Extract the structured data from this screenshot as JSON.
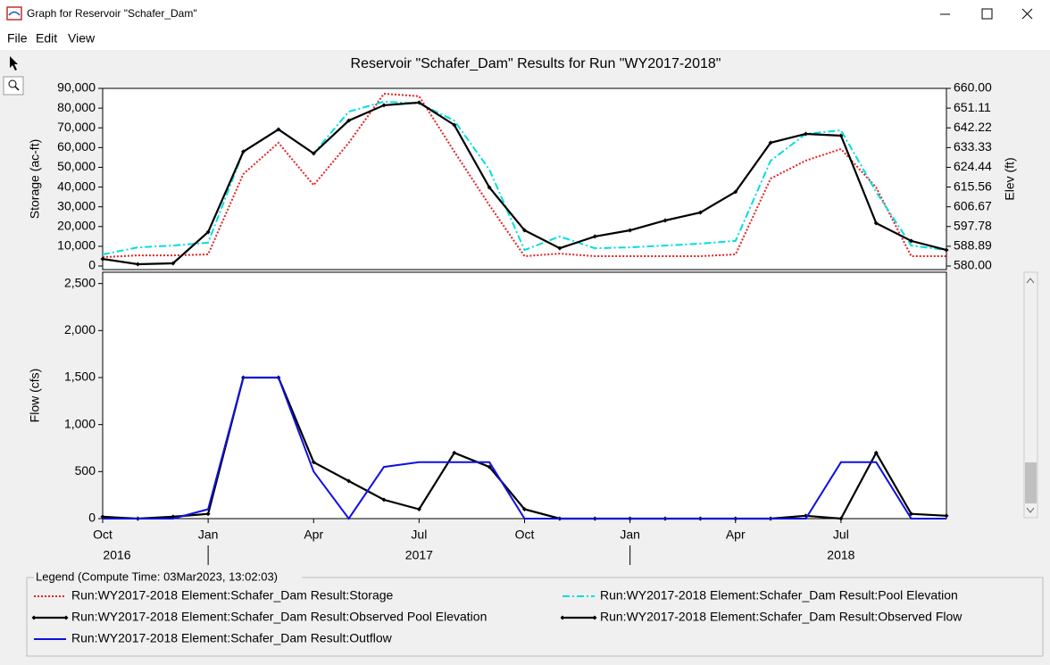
{
  "window": {
    "title": "Graph for Reservoir \"Schafer_Dam\"",
    "menu": [
      "File",
      "Edit",
      "View"
    ]
  },
  "chart_data": [
    {
      "type": "line",
      "title": "Reservoir \"Schafer_Dam\" Results for Run \"WY2017-2018\"",
      "ylabel": "Storage (ac-ft)",
      "y2label": "Elev (ft)",
      "x": [
        "2016-10",
        "2016-11",
        "2016-12",
        "2017-01",
        "2017-02",
        "2017-03",
        "2017-04",
        "2017-05",
        "2017-06",
        "2017-07",
        "2017-08",
        "2017-09",
        "2017-10",
        "2017-11",
        "2017-12",
        "2018-01",
        "2018-02",
        "2018-03",
        "2018-04",
        "2018-05",
        "2018-06",
        "2018-07",
        "2018-08",
        "2018-09",
        "2018-10"
      ],
      "xlim": [
        "2016-10",
        "2018-10"
      ],
      "ylim": [
        -1800,
        90000
      ],
      "yticks": [
        0,
        {
          "value": 10000,
          "label": "10,000"
        },
        {
          "value": 20000,
          "label": "20,000"
        },
        {
          "value": 30000,
          "label": "30,000"
        },
        {
          "value": 40000,
          "label": "40,000"
        },
        {
          "value": 50000,
          "label": "50,000"
        },
        {
          "value": 60000,
          "label": "60,000"
        },
        {
          "value": 70000,
          "label": "70,000"
        },
        {
          "value": 80000,
          "label": "80,000"
        },
        {
          "value": 90000,
          "label": "90,000"
        }
      ],
      "y2lim": [
        578.4,
        660
      ],
      "y2ticks": [
        {
          "value": 580,
          "label": "580.00"
        },
        588.89,
        597.78,
        606.67,
        615.56,
        624.44,
        633.33,
        642.22,
        651.11,
        {
          "value": 660,
          "label": "660.00"
        }
      ],
      "series": [
        {
          "name": "Run:WY2017-2018 Element:Schafer_Dam Result:Storage",
          "color": "#e32222",
          "style": "dotted",
          "axis": "y",
          "values": [
            4500,
            5400,
            5400,
            5900,
            46600,
            62400,
            41000,
            62400,
            87300,
            86000,
            58000,
            30800,
            5000,
            6300,
            5000,
            5000,
            5000,
            5000,
            5900,
            44300,
            53400,
            59300,
            39800,
            5000,
            5000
          ]
        },
        {
          "name": "Run:WY2017-2018 Element:Schafer_Dam Result:Pool Elevation",
          "color": "#00dede",
          "style": "dashdot",
          "axis": "y2",
          "values": [
            585.2,
            588.4,
            589.2,
            590.5,
            631.5,
            641.5,
            630.7,
            649.5,
            654.0,
            653.2,
            645.5,
            623.4,
            587.2,
            593.3,
            588.0,
            588.4,
            589.2,
            590.1,
            591.3,
            627.4,
            639.5,
            641.1,
            613.4,
            589.2,
            587.2
          ]
        },
        {
          "name": "Run:WY2017-2018 Element:Schafer_Dam Result:Observed Pool Elevation",
          "color": "#000000",
          "style": "markers",
          "axis": "y2",
          "values": [
            583.2,
            580.8,
            581.2,
            595.3,
            631.5,
            641.5,
            630.7,
            645.5,
            652.4,
            653.6,
            643.5,
            615.4,
            596.1,
            588.0,
            593.3,
            596.1,
            600.5,
            604.1,
            613.4,
            635.5,
            639.5,
            638.7,
            599.3,
            591.3,
            587.2
          ]
        }
      ]
    },
    {
      "type": "line",
      "ylabel": "Flow (cfs)",
      "x": [
        "2016-10",
        "2016-11",
        "2016-12",
        "2017-01",
        "2017-02",
        "2017-03",
        "2017-04",
        "2017-05",
        "2017-06",
        "2017-07",
        "2017-08",
        "2017-09",
        "2017-10",
        "2017-11",
        "2017-12",
        "2018-01",
        "2018-02",
        "2018-03",
        "2018-04",
        "2018-05",
        "2018-06",
        "2018-07",
        "2018-08",
        "2018-09",
        "2018-10"
      ],
      "xlim": [
        "2016-10",
        "2018-10"
      ],
      "ylim": [
        0,
        2620
      ],
      "yticks": [
        0,
        500,
        {
          "value": 1000,
          "label": "1,000"
        },
        {
          "value": 1500,
          "label": "1,500"
        },
        {
          "value": 2000,
          "label": "2,000"
        },
        {
          "value": 2500,
          "label": "2,500"
        }
      ],
      "xticks": [
        {
          "value": "2016-10",
          "label": "Oct"
        },
        {
          "value": "2017-01",
          "label": "Jan"
        },
        {
          "value": "2017-04",
          "label": "Apr"
        },
        {
          "value": "2017-07",
          "label": "Jul"
        },
        {
          "value": "2017-10",
          "label": "Oct"
        },
        {
          "value": "2018-01",
          "label": "Jan"
        },
        {
          "value": "2018-04",
          "label": "Apr"
        },
        {
          "value": "2018-07",
          "label": "Jul"
        }
      ],
      "year_labels": [
        {
          "value": "2016-10",
          "label": "2016"
        },
        {
          "value": "2017-07",
          "label": "2017"
        },
        {
          "value": "2018-07",
          "label": "2018"
        }
      ],
      "series": [
        {
          "name": "Run:WY2017-2018 Element:Schafer_Dam Result:Observed Flow",
          "color": "#000000",
          "style": "markers",
          "values": [
            20,
            0,
            20,
            50,
            1500,
            1500,
            600,
            400,
            200,
            100,
            700,
            550,
            100,
            0,
            0,
            0,
            0,
            0,
            0,
            0,
            30,
            0,
            700,
            50,
            30
          ]
        },
        {
          "name": "Run:WY2017-2018 Element:Schafer_Dam Result:Outflow",
          "color": "#1010e0",
          "style": "solid",
          "values": [
            0,
            0,
            0,
            100,
            1500,
            1500,
            500,
            0,
            550,
            600,
            600,
            600,
            0,
            0,
            0,
            0,
            0,
            0,
            0,
            0,
            0,
            600,
            600,
            0,
            0
          ]
        }
      ]
    }
  ],
  "legend": {
    "title": "Legend (Compute Time: 03Mar2023, 13:02:03)"
  }
}
